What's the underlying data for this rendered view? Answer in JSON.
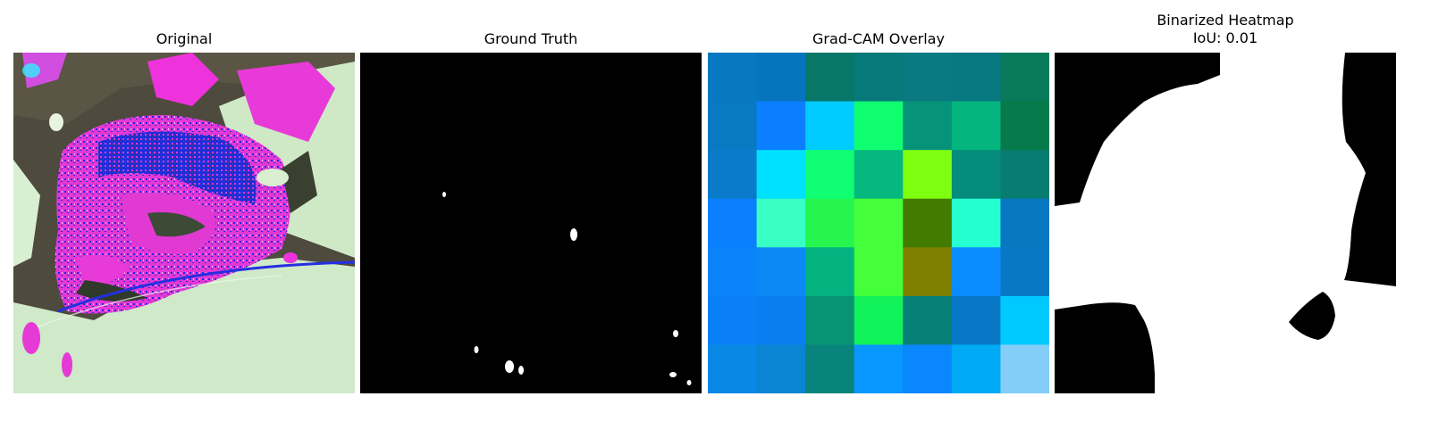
{
  "panels": [
    {
      "title": "Original",
      "icon": "leaf-image"
    },
    {
      "title": "Ground Truth",
      "icon": "mask-image"
    },
    {
      "title": "Grad-CAM Overlay",
      "icon": "heatmap-image"
    },
    {
      "title": "Binarized Heatmap",
      "subtitle": "IoU: 0.01",
      "icon": "binary-mask-image"
    }
  ],
  "gradcam_grid": [
    [
      "#0878c0",
      "#0674bf",
      "#077767",
      "#08797b",
      "#087a80",
      "#087880",
      "#087a5a"
    ],
    [
      "#0879c3",
      "#0a7fff",
      "#00ccff",
      "#10ff70",
      "#069379",
      "#04b57e",
      "#077a4c"
    ],
    [
      "#0a7acb",
      "#00e0ff",
      "#10ff72",
      "#05b87f",
      "#7fff10",
      "#058c7b",
      "#087c70"
    ],
    [
      "#0a80ff",
      "#38ffc4",
      "#26f550",
      "#45ff3a",
      "#437a00",
      "#26ffd0",
      "#0878c2"
    ],
    [
      "#0a84f8",
      "#0a89f4",
      "#04b280",
      "#44ff3a",
      "#7f7f00",
      "#0a8cff",
      "#0878c4"
    ],
    [
      "#0a80f6",
      "#0a7ef0",
      "#079474",
      "#12f25a",
      "#078078",
      "#0878c6",
      "#00c9ff"
    ],
    [
      "#0a88e6",
      "#0a85d4",
      "#08847c",
      "#0897ff",
      "#0a86ff",
      "#00aaf5",
      "#84cdf8"
    ]
  ],
  "colors": {
    "leaf_magenta": "#ee30d8",
    "leaf_blue": "#1a2ee0",
    "leaf_pale": "#cfeccb",
    "leaf_dark": "#4f4a3a"
  }
}
